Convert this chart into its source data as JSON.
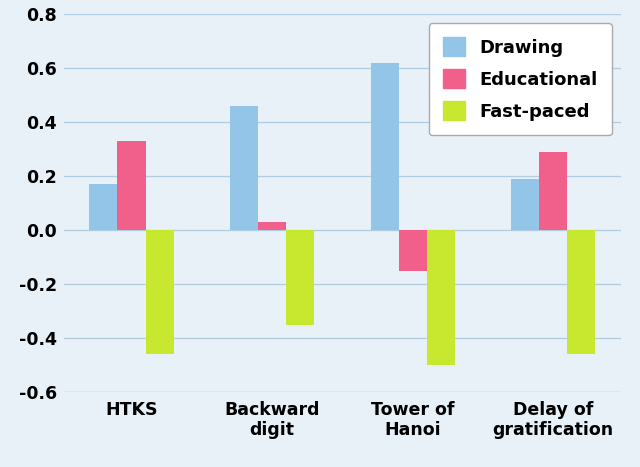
{
  "categories": [
    "HTKS",
    "Backward\ndigit",
    "Tower of\nHanoi",
    "Delay of\ngratification"
  ],
  "series": {
    "Drawing": [
      0.17,
      0.46,
      0.62,
      0.19
    ],
    "Educational": [
      0.33,
      0.03,
      -0.15,
      0.29
    ],
    "Fast-paced": [
      -0.46,
      -0.35,
      -0.5,
      -0.46
    ]
  },
  "colors": {
    "Drawing": "#92c5e8",
    "Educational": "#f0608a",
    "Fast-paced": "#c8e830"
  },
  "ylim": [
    -0.6,
    0.8
  ],
  "yticks": [
    -0.6,
    -0.4,
    -0.2,
    0.0,
    0.2,
    0.4,
    0.6,
    0.8
  ],
  "legend_labels": [
    "Drawing",
    "Educational",
    "Fast-paced"
  ],
  "bar_width": 0.2,
  "background_color": "#e8f0f8",
  "grid_color": "#b0cce0",
  "figure_bg": "#dce8f0"
}
